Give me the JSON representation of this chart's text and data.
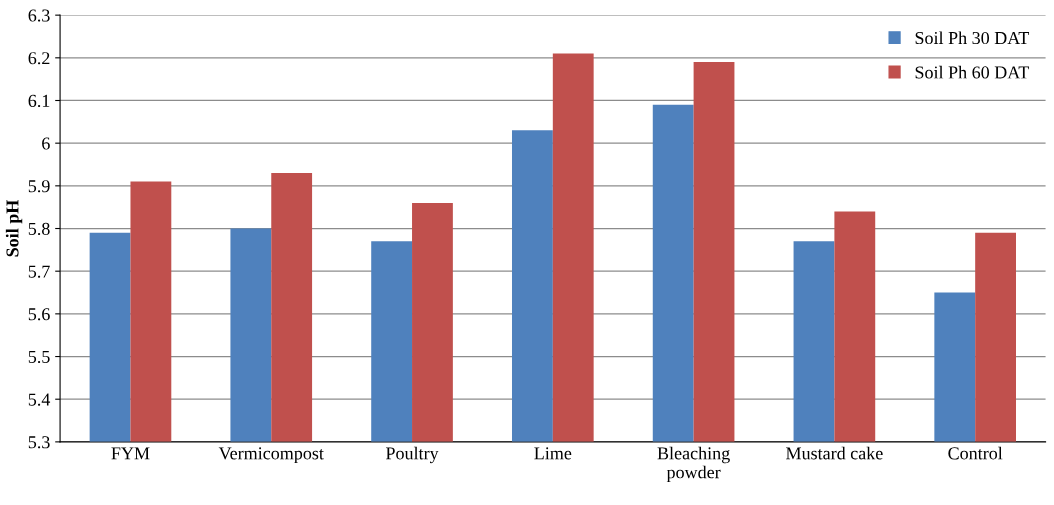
{
  "chart_data": {
    "type": "bar",
    "ylabel": "Soil pH",
    "categories": [
      "FYM",
      "Vermicompost",
      "Poultry",
      "Lime",
      "Bleaching\npowder",
      "Mustard cake",
      "Control"
    ],
    "series": [
      {
        "name": "Soil Ph 30 DAT",
        "color": "#4f81bd",
        "values": [
          5.79,
          5.8,
          5.77,
          6.03,
          6.09,
          5.77,
          5.65
        ]
      },
      {
        "name": "Soil Ph 60 DAT",
        "color": "#c0504d",
        "values": [
          5.91,
          5.93,
          5.86,
          6.21,
          6.19,
          5.84,
          5.79
        ]
      }
    ],
    "ylim": [
      5.3,
      6.3
    ],
    "yticks": [
      5.3,
      5.4,
      5.5,
      5.6,
      5.7,
      5.8,
      5.9,
      6,
      6.1,
      6.2,
      6.3
    ],
    "grid": "y",
    "legend": "top right"
  }
}
